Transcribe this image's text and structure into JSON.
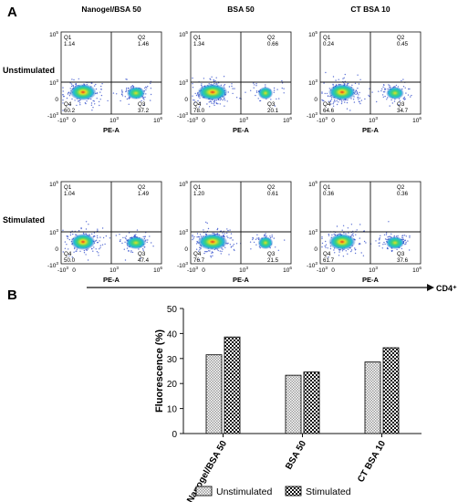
{
  "panel_a": {
    "label": "A",
    "column_titles": [
      "Nanogel/BSA 50",
      "BSA 50",
      "CT BSA 10"
    ],
    "row_titles": [
      "Unstimulated",
      "Stimulated"
    ],
    "x_axis_label": "PE-A",
    "bottom_axis_label": "CD4⁺",
    "tick_labels": {
      "y_top": "10",
      "y_top_exp": "5",
      "y_mid": "10",
      "y_mid_exp": "3",
      "y_neg": "-10",
      "y_neg_exp": "3",
      "y_zero": "0",
      "x_neg": "-10",
      "x_neg_exp": "3",
      "x_zero": "0",
      "x_3": "10",
      "x_3_exp": "3",
      "x_6": "10",
      "x_6_exp": "6"
    },
    "quadrant_names": [
      "Q1",
      "Q2",
      "Q4",
      "Q3"
    ],
    "plots": [
      {
        "row": 0,
        "col": 0,
        "q1": "1.14",
        "q2": "1.46",
        "q4": "60.2",
        "q3": "37.2"
      },
      {
        "row": 0,
        "col": 1,
        "q1": "1.34",
        "q2": "0.66",
        "q4": "78.0",
        "q3": "20.1"
      },
      {
        "row": 0,
        "col": 2,
        "q1": "0.24",
        "q2": "0.45",
        "q4": "64.6",
        "q3": "34.7"
      },
      {
        "row": 1,
        "col": 0,
        "q1": "1.04",
        "q2": "1.49",
        "q4": "50.0",
        "q3": "47.4"
      },
      {
        "row": 1,
        "col": 1,
        "q1": "1.20",
        "q2": "0.61",
        "q4": "76.7",
        "q3": "21.5"
      },
      {
        "row": 1,
        "col": 2,
        "q1": "0.36",
        "q2": "0.36",
        "q4": "61.7",
        "q3": "37.6"
      }
    ],
    "colors": {
      "density_low": "#1f3fbf",
      "density_mid": "#22c4c4",
      "density_high": "#e8e020",
      "density_peak": "#e83020"
    }
  },
  "panel_b": {
    "label": "B"
  },
  "chart_data": {
    "type": "bar",
    "categories": [
      "Nanogel/BSA 50",
      "BSA 50",
      "CT BSA 10"
    ],
    "series": [
      {
        "name": "Unstimulated",
        "values": [
          31.5,
          23.3,
          28.6
        ]
      },
      {
        "name": "Stimulated",
        "values": [
          38.6,
          24.6,
          34.3
        ]
      }
    ],
    "ylabel": "Fluorescence (%)",
    "xlabel": "",
    "ylim": [
      0,
      50
    ],
    "yticks": [
      "0",
      "10",
      "20",
      "30",
      "40",
      "50"
    ],
    "legend_position": "bottom",
    "grid": false
  }
}
